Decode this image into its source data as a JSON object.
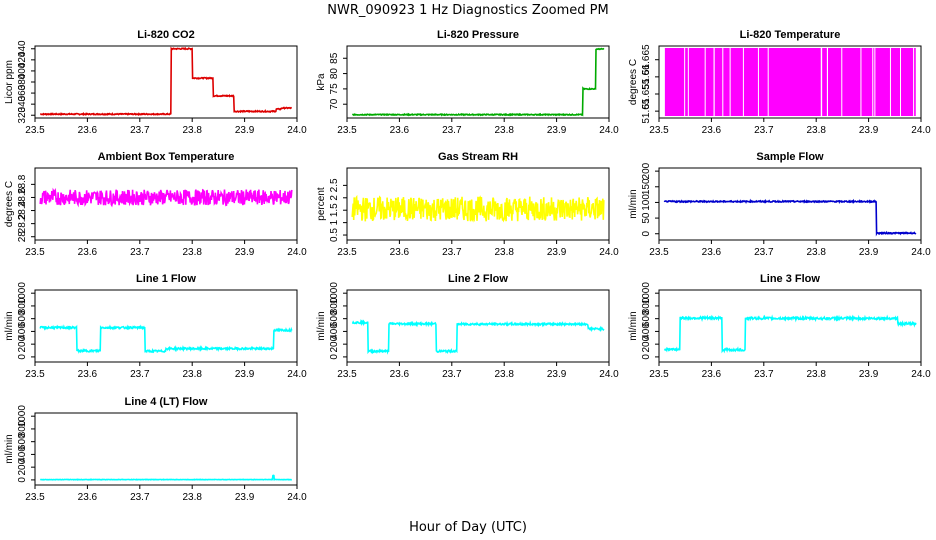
{
  "figure": {
    "title": "NWR_090923  1 Hz Diagnostics Zoomed PM",
    "xlabel": "Hour of Day (UTC)"
  },
  "chart_data": [
    {
      "type": "line",
      "title": "Li-820 CO2",
      "ylabel": "Licor ppm",
      "color": "#dd0000",
      "xlim": [
        23.5,
        24.0
      ],
      "ylim": [
        315,
        445
      ],
      "yticks": [
        320,
        340,
        360,
        380,
        400,
        420,
        440
      ],
      "xticks": [
        23.5,
        23.6,
        23.7,
        23.8,
        23.9,
        24.0
      ],
      "segments": [
        [
          23.5,
          23.76,
          322
        ],
        [
          23.76,
          23.8,
          440
        ],
        [
          23.8,
          23.84,
          387
        ],
        [
          23.84,
          23.88,
          355
        ],
        [
          23.88,
          23.96,
          327
        ],
        [
          23.96,
          23.97,
          331
        ],
        [
          23.97,
          24.0,
          333
        ]
      ],
      "noise": 1
    },
    {
      "type": "line",
      "title": "Li-820 Pressure",
      "ylabel": "kPa",
      "color": "#00aa00",
      "xlim": [
        23.5,
        24.0
      ],
      "ylim": [
        65.5,
        89
      ],
      "yticks": [
        70,
        75,
        80,
        85
      ],
      "xticks": [
        23.5,
        23.6,
        23.7,
        23.8,
        23.9,
        24.0
      ],
      "segments": [
        [
          23.5,
          23.95,
          66.6
        ],
        [
          23.95,
          23.975,
          75
        ],
        [
          23.975,
          24.0,
          88.0
        ]
      ],
      "noise": 0.15
    },
    {
      "type": "line",
      "title": "Li-820 Temperature",
      "ylabel": "degrees C",
      "color": "#ff00ff",
      "xlim": [
        23.5,
        24.0
      ],
      "ylim": [
        51.648,
        51.669
      ],
      "yticks": [
        51.65,
        51.655,
        51.66,
        51.665
      ],
      "xticks": [
        23.5,
        23.6,
        23.7,
        23.8,
        23.9,
        24.0
      ],
      "segments": [
        [
          23.5,
          24.0,
          51.658
        ]
      ],
      "noise": 0,
      "banded": true
    },
    {
      "type": "line",
      "title": "Ambient Box Temperature",
      "ylabel": "degrees C",
      "color": "#ff00ff",
      "xlim": [
        23.5,
        24.0
      ],
      "ylim": [
        27.95,
        29.05
      ],
      "yticks": [
        28.0,
        28.2,
        28.4,
        28.6,
        28.8
      ],
      "xticks": [
        23.5,
        23.6,
        23.7,
        23.8,
        23.9,
        24.0
      ],
      "segments": [
        [
          23.5,
          24.0,
          28.6
        ]
      ],
      "noise": 0.12
    },
    {
      "type": "line",
      "title": "Gas Stream RH",
      "ylabel": "percent",
      "color": "#ffff00",
      "xlim": [
        23.5,
        24.0
      ],
      "ylim": [
        0.3,
        3.2
      ],
      "yticks": [
        0.5,
        1.0,
        1.5,
        2.0,
        2.5
      ],
      "xticks": [
        23.5,
        23.6,
        23.7,
        23.8,
        23.9,
        24.0
      ],
      "segments": [
        [
          23.5,
          24.0,
          1.55
        ]
      ],
      "noise": 0.5
    },
    {
      "type": "line",
      "title": "Sample Flow",
      "ylabel": "ml/min",
      "color": "#0000cc",
      "xlim": [
        23.5,
        24.0
      ],
      "ylim": [
        -20,
        210
      ],
      "yticks": [
        0,
        50,
        100,
        150,
        200
      ],
      "xticks": [
        23.5,
        23.6,
        23.7,
        23.8,
        23.9,
        24.0
      ],
      "segments": [
        [
          23.5,
          23.915,
          103
        ],
        [
          23.915,
          24.0,
          2
        ]
      ],
      "noise": 2
    },
    {
      "type": "line",
      "title": "Line 1 Flow",
      "ylabel": "ml/min",
      "color": "#00ffff",
      "xlim": [
        23.5,
        24.0
      ],
      "ylim": [
        -80,
        1050
      ],
      "yticks": [
        0,
        200,
        400,
        600,
        800,
        1000
      ],
      "xticks": [
        23.5,
        23.6,
        23.7,
        23.8,
        23.9,
        24.0
      ],
      "segments": [
        [
          23.5,
          23.58,
          460
        ],
        [
          23.58,
          23.625,
          95
        ],
        [
          23.625,
          23.71,
          460
        ],
        [
          23.71,
          23.75,
          90
        ],
        [
          23.75,
          23.955,
          130
        ],
        [
          23.955,
          24.0,
          420
        ]
      ],
      "noise": 15
    },
    {
      "type": "line",
      "title": "Line 2 Flow",
      "ylabel": "ml/min",
      "color": "#00ffff",
      "xlim": [
        23.5,
        24.0
      ],
      "ylim": [
        -80,
        1050
      ],
      "yticks": [
        0,
        200,
        400,
        600,
        800,
        1000
      ],
      "xticks": [
        23.5,
        23.6,
        23.7,
        23.8,
        23.9,
        24.0
      ],
      "segments": [
        [
          23.5,
          23.54,
          540
        ],
        [
          23.54,
          23.58,
          90
        ],
        [
          23.58,
          23.67,
          520
        ],
        [
          23.67,
          23.71,
          90
        ],
        [
          23.71,
          23.96,
          515
        ],
        [
          23.96,
          24.0,
          440
        ]
      ],
      "noise": 15
    },
    {
      "type": "line",
      "title": "Line 3 Flow",
      "ylabel": "ml/min",
      "color": "#00ffff",
      "xlim": [
        23.5,
        24.0
      ],
      "ylim": [
        -80,
        1050
      ],
      "yticks": [
        0,
        200,
        400,
        600,
        800,
        1000
      ],
      "xticks": [
        23.5,
        23.6,
        23.7,
        23.8,
        23.9,
        24.0
      ],
      "segments": [
        [
          23.5,
          23.54,
          120
        ],
        [
          23.54,
          23.62,
          610
        ],
        [
          23.62,
          23.665,
          110
        ],
        [
          23.665,
          23.955,
          605
        ],
        [
          23.955,
          24.0,
          520
        ]
      ],
      "noise": 18
    },
    {
      "type": "line",
      "title": "Line 4 (LT) Flow",
      "ylabel": "ml/min",
      "color": "#00ffff",
      "xlim": [
        23.5,
        24.0
      ],
      "ylim": [
        -80,
        1050
      ],
      "yticks": [
        0,
        200,
        400,
        600,
        800,
        1000
      ],
      "xticks": [
        23.5,
        23.6,
        23.7,
        23.8,
        23.9,
        24.0
      ],
      "segments": [
        [
          23.5,
          24.0,
          5
        ]
      ],
      "noise": 3,
      "spike": [
        23.955,
        70
      ]
    }
  ]
}
